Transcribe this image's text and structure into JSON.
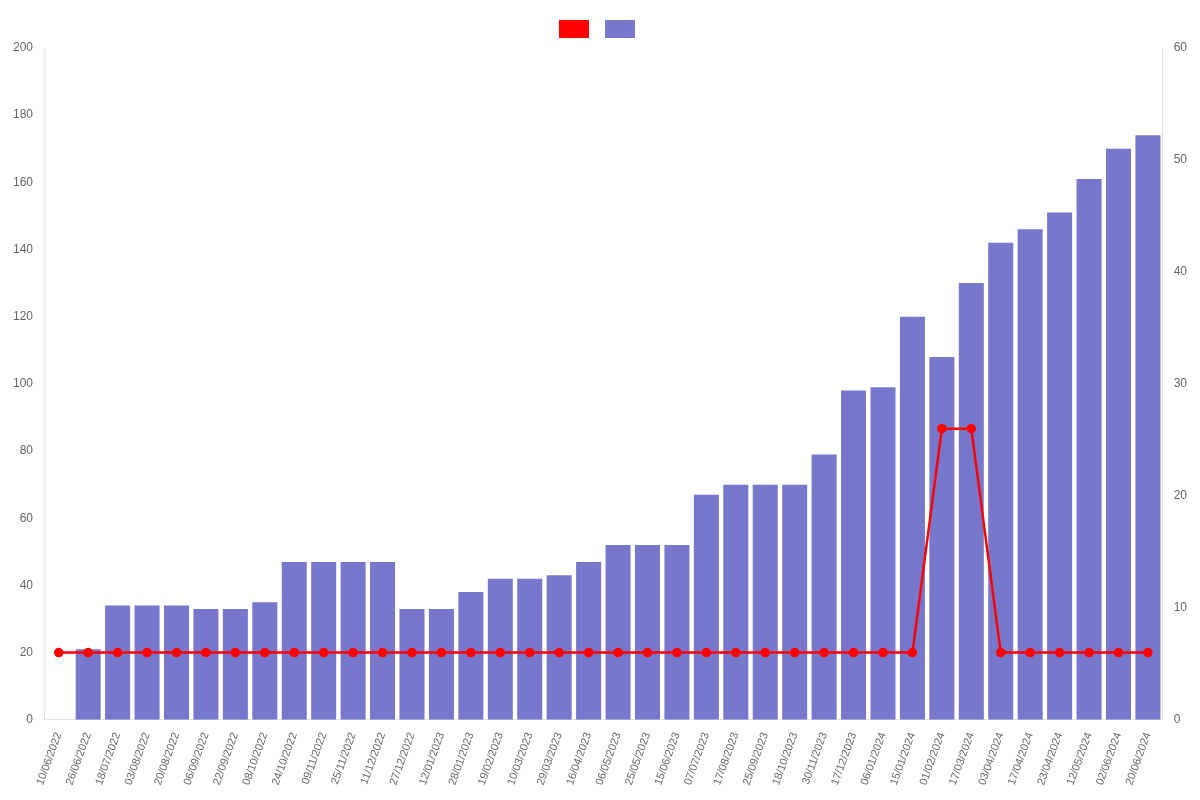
{
  "chart_data": {
    "type": "bar",
    "categories": [
      "10/06/2022",
      "26/06/2022",
      "18/07/2022",
      "03/08/2022",
      "20/08/2022",
      "06/09/2022",
      "22/09/2022",
      "08/10/2022",
      "24/10/2022",
      "09/11/2022",
      "25/11/2022",
      "11/12/2022",
      "27/12/2022",
      "12/01/2023",
      "28/01/2023",
      "19/02/2023",
      "10/03/2023",
      "29/03/2023",
      "16/04/2023",
      "06/05/2023",
      "25/05/2023",
      "15/06/2023",
      "07/07/2023",
      "17/08/2023",
      "25/09/2023",
      "18/10/2023",
      "30/11/2023",
      "17/12/2023",
      "06/01/2024",
      "15/01/2024",
      "01/02/2024",
      "17/03/2024",
      "03/04/2024",
      "17/04/2024",
      "23/04/2024",
      "12/05/2024",
      "02/06/2024",
      "20/06/2024"
    ],
    "series": [
      {
        "type": "bar",
        "color": "#7777cc",
        "values": [
          0,
          21,
          34,
          34,
          34,
          33,
          33,
          35,
          47,
          47,
          47,
          47,
          33,
          33,
          38,
          42,
          42,
          43,
          47,
          52,
          52,
          52,
          67,
          70,
          70,
          70,
          79,
          98,
          99,
          120,
          108,
          130,
          142,
          146,
          151,
          161,
          170,
          174
        ]
      },
      {
        "type": "line",
        "axis": "y2",
        "color": "#ff0000",
        "marker": "circle",
        "line_style": "solid",
        "values": [
          6.0,
          6.0,
          6.0,
          6.0,
          6.0,
          6.0,
          6.0,
          6.0,
          6.0,
          6.0,
          6.0,
          6.0,
          6.0,
          6.0,
          6.0,
          6.0,
          6.0,
          6.0,
          6.0,
          6.0,
          6.0,
          6.0,
          6.0,
          6.0,
          6.0,
          6.0,
          6.0,
          6.0,
          6.0,
          6.0,
          26.0,
          26.0,
          6.0,
          6.0,
          6.0,
          6.0,
          6.0,
          6.0
        ]
      }
    ],
    "ylim": [
      0,
      200
    ],
    "yticks": [
      0,
      20,
      40,
      60,
      80,
      100,
      120,
      140,
      160,
      180,
      200
    ],
    "y2lim": [
      0,
      60
    ],
    "y2ticks": [
      0,
      10,
      20,
      30,
      40,
      50,
      60
    ],
    "grid": false,
    "legend": "top"
  }
}
